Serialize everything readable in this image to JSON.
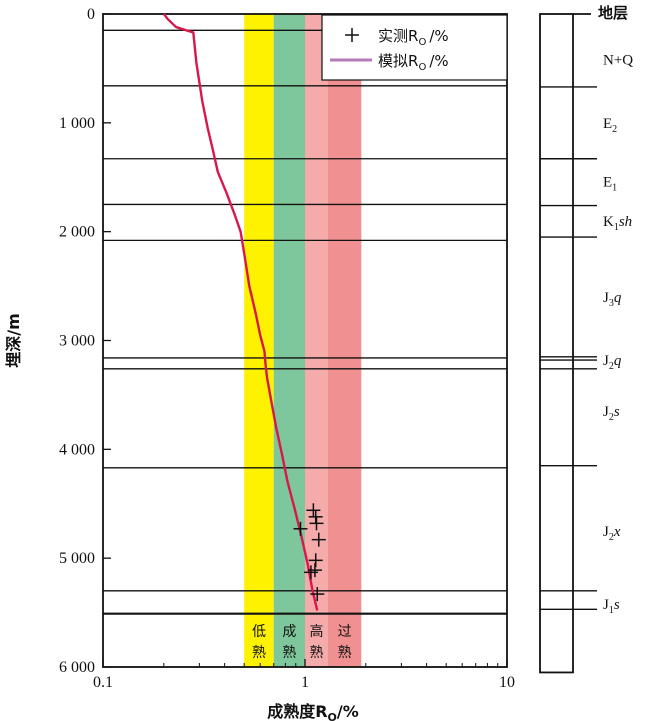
{
  "chart_data": {
    "type": "line",
    "xlabel": "成熟度R",
    "xlabel_sub": "O",
    "xlabel_unit": "/%",
    "ylabel": "埋深/m",
    "x_scale": "log",
    "xlim": [
      0.1,
      10
    ],
    "ylim": [
      0,
      6000
    ],
    "y_inverted": true,
    "x_ticks": [
      {
        "value": 0.1,
        "label": "0.1"
      },
      {
        "value": 1,
        "label": "1"
      },
      {
        "value": 10,
        "label": "10"
      }
    ],
    "y_ticks": [
      {
        "value": 0,
        "label": "0"
      },
      {
        "value": 1000,
        "label": "1 000"
      },
      {
        "value": 2000,
        "label": "2 000"
      },
      {
        "value": 3000,
        "label": "3 000"
      },
      {
        "value": 4000,
        "label": "4 000"
      },
      {
        "value": 5000,
        "label": "5 000"
      },
      {
        "value": 6000,
        "label": "6 000"
      }
    ],
    "maturity_zones": [
      {
        "label": [
          "低",
          "熟"
        ],
        "from": 0.5,
        "to": 0.7,
        "color": "#fff200"
      },
      {
        "label": [
          "成",
          "熟"
        ],
        "from": 0.7,
        "to": 1.0,
        "color": "#7ec79c"
      },
      {
        "label": [
          "高",
          "熟"
        ],
        "from": 1.0,
        "to": 1.3,
        "color": "#f6abab"
      },
      {
        "label": [
          "过",
          "熟"
        ],
        "from": 1.3,
        "to": 1.9,
        "color": "#f09090"
      }
    ],
    "zone_bottom_depth": 5520,
    "zone_label_top_depth": 5520,
    "horizons": [
      150,
      660,
      1330,
      1750,
      2080,
      3160,
      3260,
      4170,
      5300,
      5510
    ],
    "horizon_bold": [
      5510
    ],
    "series": [
      {
        "name": "模拟R",
        "name_sub": "O",
        "name_unit": "/%",
        "kind": "line",
        "color": "#d8174d",
        "x": [
          0.2,
          0.21,
          0.23,
          0.28,
          0.29,
          0.31,
          0.33,
          0.35,
          0.37,
          0.41,
          0.45,
          0.48,
          0.5,
          0.53,
          0.57,
          0.6,
          0.63,
          0.64,
          0.65,
          0.68,
          0.72,
          0.77,
          0.82,
          0.89,
          0.96,
          1.03,
          1.09,
          1.15
        ],
        "y": [
          0,
          50,
          120,
          170,
          450,
          800,
          1050,
          1250,
          1450,
          1650,
          1850,
          2000,
          2200,
          2500,
          2750,
          2950,
          3100,
          3250,
          3350,
          3550,
          3800,
          4050,
          4300,
          4550,
          4800,
          5050,
          5300,
          5480
        ]
      },
      {
        "name": "实测R",
        "name_sub": "O",
        "name_unit": "/%",
        "kind": "scatter",
        "marker": "+",
        "color": "#111111",
        "x": [
          1.1,
          1.13,
          0.95,
          1.14,
          1.17,
          1.13,
          1.07,
          1.12,
          1.15
        ],
        "y": [
          4560,
          4620,
          4730,
          4680,
          4830,
          5020,
          5130,
          5110,
          5330
        ]
      }
    ],
    "legend": {
      "position": "top-right"
    },
    "strat_column": {
      "title": "地层",
      "units": [
        {
          "text": "N+Q",
          "sub": "",
          "rest": "",
          "label_depth": 420,
          "top": 0,
          "bottom": 670
        },
        {
          "text": "E",
          "sub": "2",
          "rest": "",
          "label_depth": 1000,
          "top": 670,
          "bottom": 1330
        },
        {
          "text": "E",
          "sub": "1",
          "rest": "",
          "label_depth": 1540,
          "top": 1330,
          "bottom": 1760
        },
        {
          "text": "K",
          "sub": "1",
          "rest": "sh",
          "label_depth": 1900,
          "top": 1760,
          "bottom": 2050
        },
        {
          "text": "J",
          "sub": "3",
          "rest": "q",
          "label_depth": 2600,
          "top": 2050,
          "bottom": 3150
        },
        {
          "text": "J",
          "sub": "2",
          "rest": "q",
          "label_depth": 3180,
          "top": 3150,
          "bottom": 3260
        },
        {
          "text": "J",
          "sub": "2",
          "rest": "s",
          "label_depth": 3650,
          "top": 3260,
          "bottom": 4150
        },
        {
          "text": "J",
          "sub": "2",
          "rest": "x",
          "label_depth": 4750,
          "top": 4150,
          "bottom": 5300
        },
        {
          "text": "J",
          "sub": "1",
          "rest": "s",
          "label_depth": 5420,
          "top": 5300,
          "bottom": 5470
        }
      ],
      "boundaries": [
        670,
        1330,
        1760,
        2050,
        3150,
        3180,
        3260,
        4150,
        5300,
        5470
      ],
      "bottom_depth": 6050
    }
  }
}
